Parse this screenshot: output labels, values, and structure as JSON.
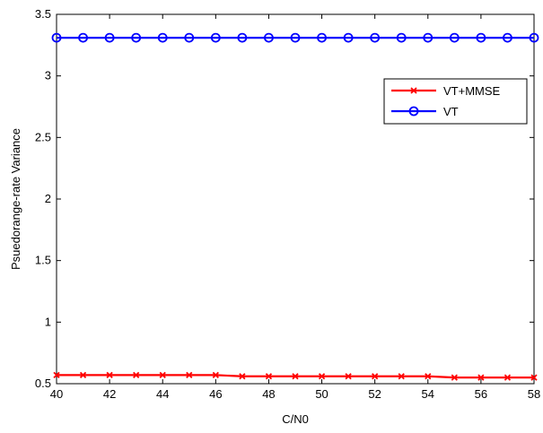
{
  "chart_data": {
    "type": "line",
    "title": "",
    "xlabel": "C/N0",
    "ylabel": "Psuedorange-rate Variance",
    "xlim": [
      40,
      58
    ],
    "ylim": [
      0.5,
      3.5
    ],
    "xticks": [
      40,
      42,
      44,
      46,
      48,
      50,
      52,
      54,
      56,
      58
    ],
    "yticks": [
      0.5,
      1,
      1.5,
      2,
      2.5,
      3,
      3.5
    ],
    "grid": false,
    "legend_position": "top-right",
    "x": [
      40,
      41,
      42,
      43,
      44,
      45,
      46,
      47,
      48,
      49,
      50,
      51,
      52,
      53,
      54,
      55,
      56,
      57,
      58
    ],
    "series": [
      {
        "name": "VT+MMSE",
        "color": "#ff0000",
        "marker": "x",
        "values": [
          0.57,
          0.57,
          0.57,
          0.57,
          0.57,
          0.57,
          0.57,
          0.56,
          0.56,
          0.56,
          0.56,
          0.56,
          0.56,
          0.56,
          0.56,
          0.55,
          0.55,
          0.55,
          0.55
        ]
      },
      {
        "name": "VT",
        "color": "#0000ff",
        "marker": "circle",
        "values": [
          3.31,
          3.31,
          3.31,
          3.31,
          3.31,
          3.31,
          3.31,
          3.31,
          3.31,
          3.31,
          3.31,
          3.31,
          3.31,
          3.31,
          3.31,
          3.31,
          3.31,
          3.31,
          3.31
        ]
      }
    ]
  }
}
